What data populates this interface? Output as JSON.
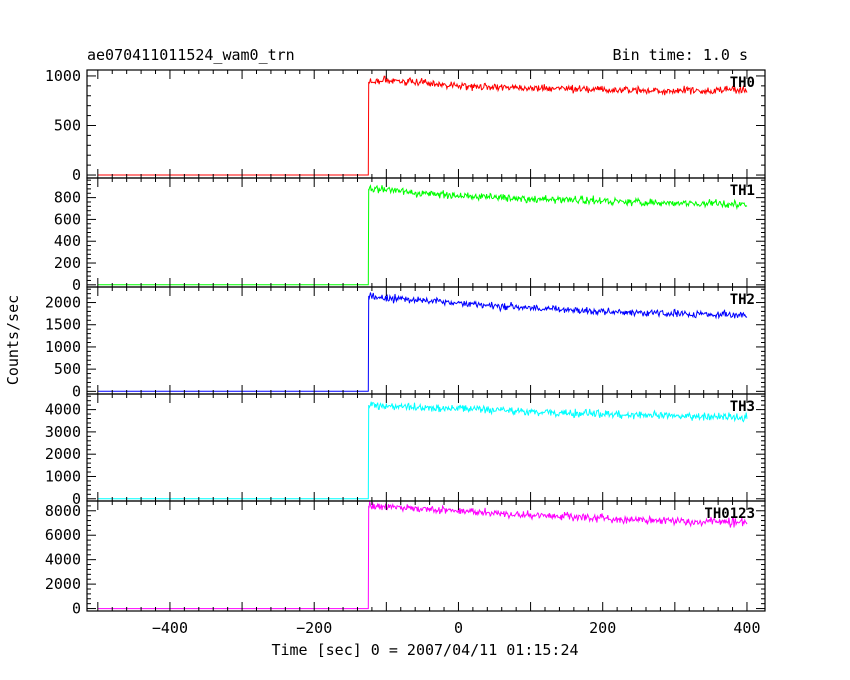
{
  "header": {
    "title": "ae070411011524_wam0_trn",
    "bin_time": "Bin time: 1.0 s"
  },
  "chart_data": {
    "type": "line",
    "title": "ae070411011524_wam0_trn",
    "xlabel": "Time [sec] 0 = 2007/04/11 01:15:24",
    "ylabel": "Counts/sec",
    "xlim": [
      -515,
      425
    ],
    "x_ticks": [
      -400,
      -200,
      0,
      200,
      400
    ],
    "x_tick_labels": [
      "−400",
      "−200",
      "0",
      "200",
      "400"
    ],
    "grid": false,
    "series": [
      {
        "name": "TH0",
        "color": "#ff0000",
        "ylim": [
          -30,
          1060
        ],
        "y_ticks": [
          0,
          500,
          1000
        ],
        "y_tick_labels": [
          "0",
          "500",
          "1000"
        ],
        "x": [
          -500,
          -125,
          -124,
          -110,
          -50,
          0,
          100,
          200,
          300,
          400
        ],
        "y": [
          0,
          0,
          940,
          960,
          930,
          900,
          880,
          860,
          850,
          860
        ]
      },
      {
        "name": "TH1",
        "color": "#00ff00",
        "ylim": [
          -20,
          980
        ],
        "y_ticks": [
          0,
          200,
          400,
          600,
          800
        ],
        "y_tick_labels": [
          "0",
          "200",
          "400",
          "600",
          "800"
        ],
        "x": [
          -500,
          -125,
          -124,
          -110,
          -50,
          0,
          100,
          200,
          300,
          400
        ],
        "y": [
          0,
          0,
          880,
          870,
          840,
          820,
          790,
          770,
          750,
          740
        ]
      },
      {
        "name": "TH2",
        "color": "#0000ff",
        "ylim": [
          -60,
          2350
        ],
        "y_ticks": [
          0,
          500,
          1000,
          1500,
          2000
        ],
        "y_tick_labels": [
          "0",
          "500",
          "1000",
          "1500",
          "2000"
        ],
        "x": [
          -500,
          -125,
          -124,
          -110,
          -50,
          0,
          100,
          200,
          300,
          400
        ],
        "y": [
          0,
          0,
          2150,
          2100,
          2050,
          1980,
          1880,
          1800,
          1760,
          1720
        ]
      },
      {
        "name": "TH3",
        "color": "#00ffff",
        "ylim": [
          -100,
          4700
        ],
        "y_ticks": [
          0,
          1000,
          2000,
          3000,
          4000
        ],
        "y_tick_labels": [
          "0",
          "1000",
          "2000",
          "3000",
          "4000"
        ],
        "x": [
          -500,
          -125,
          -124,
          -110,
          -50,
          0,
          100,
          200,
          300,
          400
        ],
        "y": [
          0,
          0,
          4200,
          4180,
          4100,
          4050,
          3900,
          3800,
          3700,
          3650
        ]
      },
      {
        "name": "TH0123",
        "color": "#ff00ff",
        "ylim": [
          -200,
          8800
        ],
        "y_ticks": [
          0,
          2000,
          4000,
          6000,
          8000
        ],
        "y_tick_labels": [
          "0",
          "2000",
          "4000",
          "6000",
          "8000"
        ],
        "x": [
          -500,
          -125,
          -124,
          -110,
          -50,
          0,
          100,
          200,
          300,
          400
        ],
        "y": [
          0,
          0,
          8400,
          8350,
          8150,
          8000,
          7650,
          7400,
          7150,
          7000
        ]
      }
    ]
  }
}
